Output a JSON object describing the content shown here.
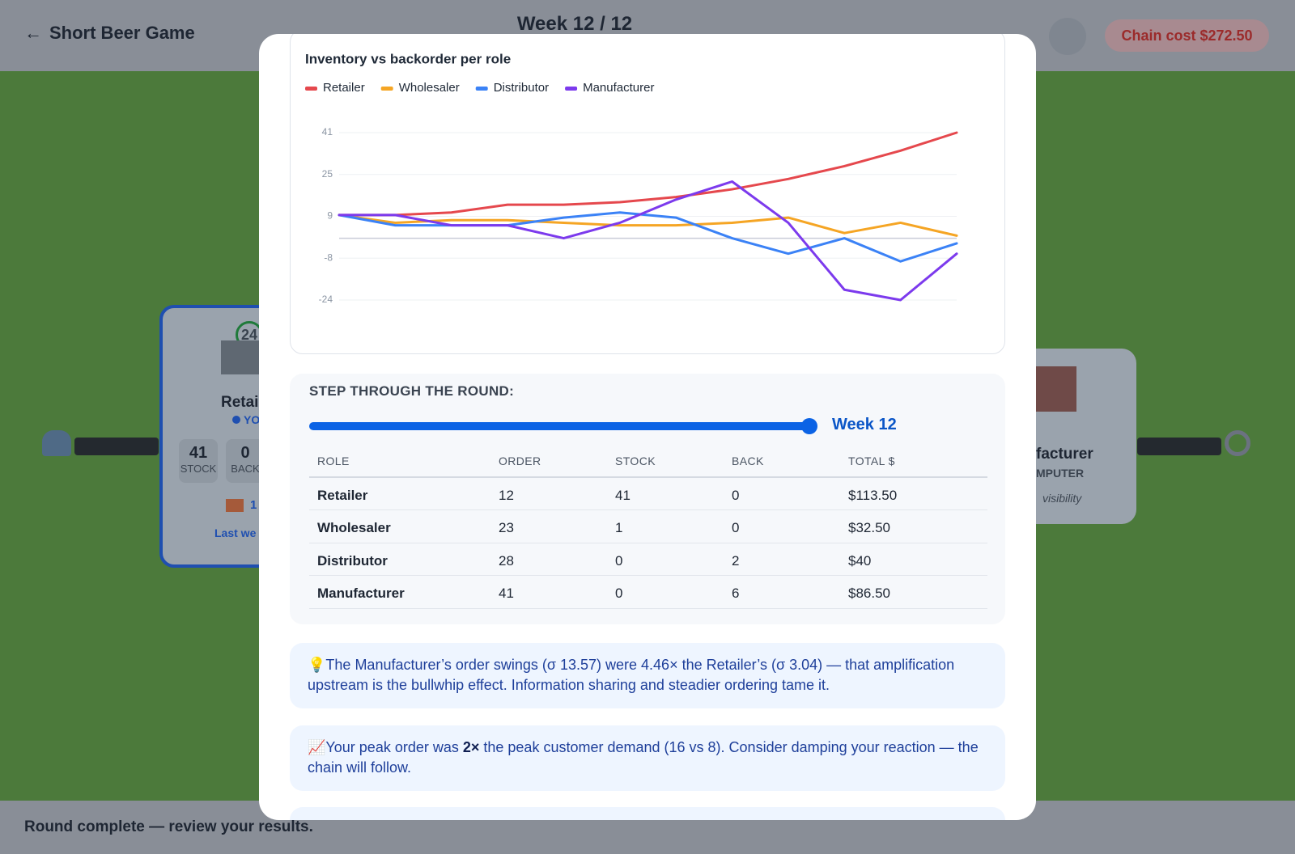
{
  "header": {
    "title": "Short Beer Game",
    "week": "Week 12 / 12",
    "chain_cost": "Chain cost $272.50"
  },
  "board": {
    "retailer": {
      "badge": "24",
      "name": "Retai",
      "tag": "YO",
      "stats": [
        {
          "value": "41",
          "label": "STOCK"
        },
        {
          "value": "0",
          "label": "BACK"
        }
      ],
      "incoming": "1",
      "note": "Last we"
    },
    "manufacturer": {
      "name": "facturer",
      "tag": "MPUTER",
      "note": "visibility"
    }
  },
  "chart_data": {
    "type": "line",
    "title": "Inventory vs backorder per role",
    "categories": [
      null,
      null,
      null,
      null,
      null,
      null,
      null,
      null,
      null,
      null,
      null,
      null
    ],
    "series": [
      {
        "name": "Retailer",
        "color": "#e5484d",
        "values": [
          9,
          9,
          10,
          13,
          13,
          14,
          16,
          19,
          23,
          28,
          34,
          41
        ]
      },
      {
        "name": "Wholesaler",
        "color": "#f5a524",
        "values": [
          9,
          6,
          7,
          7,
          6,
          5,
          5,
          6,
          8,
          2,
          6,
          1
        ]
      },
      {
        "name": "Distributor",
        "color": "#3b82f6",
        "values": [
          9,
          5,
          5,
          5,
          8,
          10,
          8,
          0,
          -6,
          0,
          -9,
          -2
        ]
      },
      {
        "name": "Manufacturer",
        "color": "#7c3aed",
        "values": [
          9,
          9,
          5,
          5,
          0,
          6,
          15,
          22,
          6,
          -20,
          -24,
          -6
        ]
      }
    ],
    "ylim": [
      -24,
      41
    ],
    "yticks": [
      41,
      {
        "value": 24.75,
        "label": "25"
      },
      {
        "value": 8.5,
        "label": "9"
      },
      {
        "value": -7.75,
        "label": "-8"
      },
      -24
    ],
    "grid": true,
    "legend": "top-left"
  },
  "step": {
    "title": "STEP THROUGH THE ROUND:",
    "week_label": "Week 12",
    "columns": [
      "ROLE",
      "ORDER",
      "STOCK",
      "BACK",
      "TOTAL $"
    ],
    "rows": [
      [
        "Retailer",
        "12",
        "41",
        "0",
        "$113.50"
      ],
      [
        "Wholesaler",
        "23",
        "1",
        "0",
        "$32.50"
      ],
      [
        "Distributor",
        "28",
        "0",
        "2",
        "$40"
      ],
      [
        "Manufacturer",
        "41",
        "0",
        "6",
        "$86.50"
      ]
    ]
  },
  "insights": [
    {
      "icon": "💡",
      "parts": [
        "The Manufacturer’s order swings (σ 13.57) were 4.46× the Retailer’s (σ 3.04) — that amplification upstream is the bullwhip effect. Information sharing and steadier ordering tame it."
      ]
    },
    {
      "icon": "📈",
      "parts": [
        "Your peak order was ",
        "2×",
        " the peak customer demand (16 vs 8). Consider damping your reaction — the chain will follow."
      ]
    }
  ],
  "footer": {
    "status": "Round complete — review your results."
  }
}
